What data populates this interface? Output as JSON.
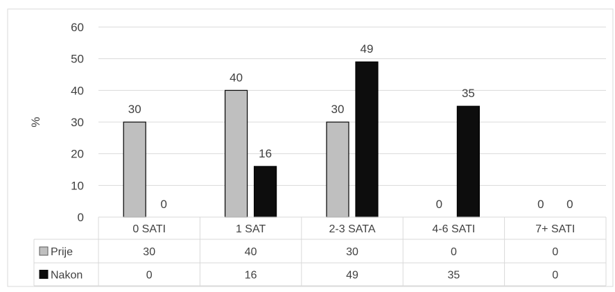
{
  "chart_data": {
    "type": "bar",
    "ylabel": "%",
    "ylim": [
      0,
      60
    ],
    "yticks": [
      0,
      10,
      20,
      30,
      40,
      50,
      60
    ],
    "grid": true,
    "categories": [
      "0 SATI",
      "1 SAT",
      "2-3 SATA",
      "4-6 SATI",
      "7+ SATI"
    ],
    "series": [
      {
        "name": "Prije",
        "values": [
          30,
          40,
          30,
          0,
          0
        ],
        "color": "#bfbfbf"
      },
      {
        "name": "Nakon",
        "values": [
          0,
          16,
          49,
          35,
          0
        ],
        "color": "#0d0d0d"
      }
    ],
    "data_table": true
  }
}
